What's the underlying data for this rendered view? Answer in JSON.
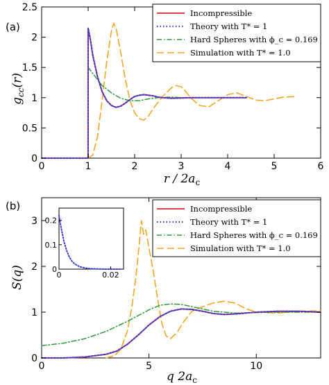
{
  "colors": {
    "incompressible": "#d9262b",
    "theory": "#3b3bd6",
    "hard_spheres": "#2e9a3a",
    "simulation": "#f2a624"
  },
  "chart_data": [
    {
      "panel": "(a)",
      "type": "line",
      "xlabel": "r / 2a_c",
      "ylabel": "g_cc(r)",
      "xlim": [
        0,
        6
      ],
      "ylim": [
        0,
        2.5
      ],
      "xticks": [
        "0",
        "1",
        "2",
        "3",
        "4",
        "5",
        "6"
      ],
      "yticks": [
        "0",
        "0.5",
        "1",
        "1.5",
        "2",
        "2.5"
      ],
      "legend_position": "top-right",
      "series": [
        {
          "name": "Incompressible",
          "style": "solid",
          "x": [
            0,
            0.999,
            1.0,
            1.05,
            1.1,
            1.2,
            1.3,
            1.4,
            1.5,
            1.6,
            1.7,
            1.8,
            1.9,
            2.0,
            2.1,
            2.2,
            2.3,
            2.4,
            2.5,
            2.6,
            2.8,
            3.0,
            3.2,
            3.5,
            4.0,
            4.4
          ],
          "y": [
            0,
            0,
            2.15,
            1.95,
            1.7,
            1.35,
            1.1,
            0.95,
            0.87,
            0.84,
            0.86,
            0.91,
            0.97,
            1.02,
            1.04,
            1.05,
            1.04,
            1.03,
            1.01,
            1.0,
            0.99,
            0.995,
            1.0,
            1.0,
            1.0,
            1.0
          ]
        },
        {
          "name": "Theory with T* = 1",
          "style": "dotted",
          "x": [
            0,
            0.999,
            1.0,
            1.05,
            1.1,
            1.2,
            1.3,
            1.4,
            1.5,
            1.6,
            1.7,
            1.8,
            1.9,
            2.0,
            2.1,
            2.2,
            2.3,
            2.4,
            2.5,
            2.6,
            2.8,
            3.0,
            3.2,
            3.5,
            4.0,
            4.4
          ],
          "y": [
            0,
            0,
            2.15,
            1.95,
            1.7,
            1.35,
            1.1,
            0.95,
            0.87,
            0.84,
            0.86,
            0.91,
            0.97,
            1.02,
            1.04,
            1.05,
            1.04,
            1.03,
            1.01,
            1.0,
            0.99,
            0.995,
            1.0,
            1.0,
            1.0,
            1.0
          ]
        },
        {
          "name": "Hard Spheres with ϕ_c = 0.169",
          "style": "dashdot",
          "x": [
            1.0,
            1.0,
            1.1,
            1.2,
            1.3,
            1.5,
            1.7,
            1.9,
            2.1,
            2.3,
            2.5,
            2.8,
            3.0,
            3.5,
            4.0
          ],
          "y": [
            0,
            1.5,
            1.4,
            1.3,
            1.2,
            1.08,
            0.99,
            0.95,
            0.95,
            0.98,
            1.0,
            1.01,
            1.0,
            1.0,
            1.0
          ]
        },
        {
          "name": "Simulation with T* = 1.0",
          "style": "dashed",
          "x": [
            1.0,
            1.1,
            1.2,
            1.3,
            1.4,
            1.5,
            1.55,
            1.6,
            1.7,
            1.8,
            1.9,
            2.0,
            2.1,
            2.2,
            2.3,
            2.4,
            2.6,
            2.8,
            2.9,
            3.0,
            3.1,
            3.2,
            3.4,
            3.6,
            3.8,
            4.0,
            4.2,
            4.4,
            4.6,
            4.8,
            5.0,
            5.2,
            5.5
          ],
          "y": [
            0,
            0.05,
            0.35,
            0.95,
            1.6,
            2.1,
            2.23,
            2.15,
            1.75,
            1.3,
            0.95,
            0.75,
            0.65,
            0.63,
            0.7,
            0.82,
            1.02,
            1.17,
            1.2,
            1.18,
            1.1,
            1.0,
            0.87,
            0.85,
            0.95,
            1.05,
            1.08,
            1.02,
            0.96,
            0.95,
            0.98,
            1.01,
            1.02
          ]
        }
      ]
    },
    {
      "panel": "(b)",
      "type": "line",
      "xlabel": "q 2a_c",
      "ylabel": "S(q)",
      "xlim": [
        0,
        13
      ],
      "ylim": [
        0,
        3.5
      ],
      "xticks": [
        "0",
        "5",
        "10"
      ],
      "yticks": [
        "0",
        "1",
        "2",
        "3"
      ],
      "legend_position": "top-right",
      "series": [
        {
          "name": "Incompressible",
          "style": "solid",
          "x": [
            0,
            1,
            2,
            3,
            3.5,
            4,
            4.5,
            5,
            5.5,
            6,
            6.5,
            7,
            7.5,
            8,
            8.5,
            9,
            10,
            11,
            12,
            13
          ],
          "y": [
            0,
            0.0,
            0.02,
            0.08,
            0.15,
            0.3,
            0.5,
            0.72,
            0.9,
            1.02,
            1.07,
            1.06,
            1.02,
            0.97,
            0.95,
            0.96,
            1.0,
            1.02,
            1.02,
            1.0
          ]
        },
        {
          "name": "Theory with T* = 1",
          "style": "dotted",
          "x": [
            0,
            1,
            2,
            3,
            3.5,
            4,
            4.5,
            5,
            5.5,
            6,
            6.5,
            7,
            7.5,
            8,
            8.5,
            9,
            10,
            11,
            12,
            13
          ],
          "y": [
            0,
            0.0,
            0.02,
            0.08,
            0.15,
            0.3,
            0.5,
            0.72,
            0.9,
            1.02,
            1.07,
            1.06,
            1.02,
            0.97,
            0.95,
            0.96,
            1.0,
            1.02,
            1.02,
            1.0
          ]
        },
        {
          "name": "Hard Spheres with ϕ_c = 0.169",
          "style": "dashdot",
          "x": [
            0,
            1,
            2,
            3,
            4,
            5,
            5.5,
            6,
            6.5,
            7,
            8,
            9,
            10,
            11,
            12,
            13
          ],
          "y": [
            0.27,
            0.32,
            0.42,
            0.58,
            0.8,
            1.05,
            1.15,
            1.18,
            1.17,
            1.12,
            1.02,
            0.98,
            0.99,
            1.0,
            1.0,
            1.0
          ]
        },
        {
          "name": "Simulation with T* = 1.0",
          "style": "dashed",
          "x": [
            3.0,
            3.4,
            3.7,
            4.0,
            4.2,
            4.4,
            4.55,
            4.65,
            4.75,
            4.85,
            5.0,
            5.2,
            5.4,
            5.6,
            5.8,
            6.0,
            6.3,
            6.6,
            7.0,
            7.5,
            8.0,
            8.5,
            9.0,
            9.5,
            10.0,
            11.0,
            12.0,
            13.0
          ],
          "y": [
            0.0,
            0.05,
            0.2,
            0.6,
            1.1,
            1.8,
            2.5,
            3.0,
            2.7,
            2.8,
            2.4,
            1.9,
            1.3,
            0.75,
            0.48,
            0.42,
            0.55,
            0.78,
            1.02,
            1.12,
            1.2,
            1.24,
            1.2,
            1.08,
            1.0,
            0.98,
            1.02,
            1.03
          ]
        }
      ],
      "inset": {
        "xlim": [
          0,
          0.025
        ],
        "ylim": [
          0,
          0.25
        ],
        "xticks": [
          "0",
          "0.02"
        ],
        "yticks": [
          "0",
          "0.1",
          "0.2"
        ],
        "series": [
          {
            "name": "Theory with T* = 1",
            "style": "dotted",
            "x": [
              0.0,
              0.001,
              0.002,
              0.003,
              0.004,
              0.005,
              0.006,
              0.008,
              0.01,
              0.012,
              0.015,
              0.018,
              0.02,
              0.022,
              0.024
            ],
            "y": [
              0.22,
              0.16,
              0.11,
              0.075,
              0.05,
              0.033,
              0.022,
              0.01,
              0.005,
              0.002,
              0.001,
              0.0,
              0.0,
              0.0,
              0.0
            ]
          }
        ]
      }
    }
  ]
}
